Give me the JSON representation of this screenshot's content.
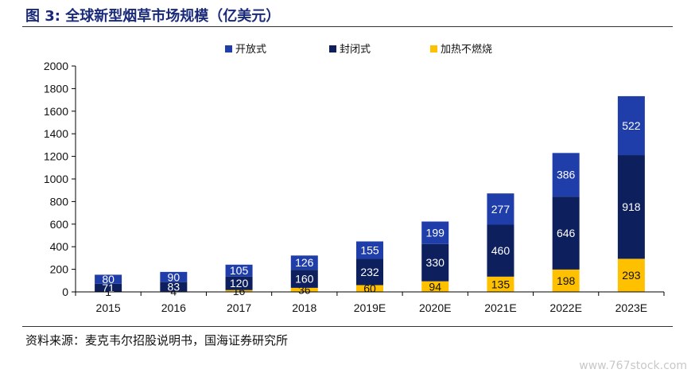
{
  "figure": {
    "title": "图 3: 全球新型烟草市场规模（亿美元）",
    "source": "资料来源：麦克韦尔招股说明书，国海证券研究所",
    "watermark": "www.767stock.com"
  },
  "chart_data": {
    "type": "bar",
    "stacked": true,
    "categories": [
      "2015",
      "2016",
      "2017",
      "2018",
      "2019E",
      "2020E",
      "2021E",
      "2022E",
      "2023E"
    ],
    "series": [
      {
        "name": "加热不燃烧",
        "color": "#ffc000",
        "values": [
          1,
          4,
          16,
          36,
          60,
          94,
          135,
          198,
          293
        ]
      },
      {
        "name": "封闭式",
        "color": "#0d1f5c",
        "values": [
          71,
          83,
          120,
          160,
          232,
          330,
          460,
          646,
          918
        ]
      },
      {
        "name": "开放式",
        "color": "#1f3eaa",
        "values": [
          80,
          90,
          105,
          126,
          155,
          199,
          277,
          386,
          522
        ]
      }
    ],
    "legend_order": [
      "开放式",
      "封闭式",
      "加热不燃烧"
    ],
    "ylim": [
      0,
      2000
    ],
    "yticks": [
      0,
      200,
      400,
      600,
      800,
      1000,
      1200,
      1400,
      1600,
      1800,
      2000
    ],
    "legend_position": "top",
    "grid": false,
    "xlabel": "",
    "ylabel": ""
  }
}
